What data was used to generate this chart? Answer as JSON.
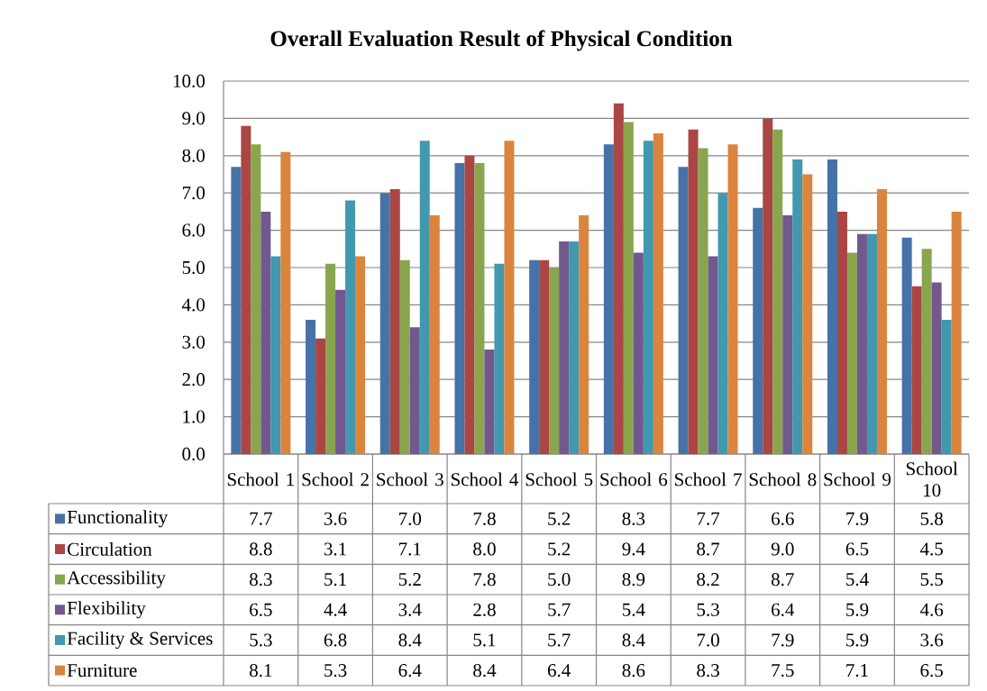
{
  "chart_data": {
    "type": "bar",
    "title": "Overall Evaluation Result of Physical Condition",
    "categories": [
      "School 1",
      "School 2",
      "School 3",
      "School 4",
      "School 5",
      "School 6",
      "School 7",
      "School 8",
      "School 9",
      "School 10"
    ],
    "series": [
      {
        "name": "Functionality",
        "color": "#4572A7",
        "values": [
          7.7,
          3.6,
          7.0,
          7.8,
          5.2,
          8.3,
          7.7,
          6.6,
          7.9,
          5.8
        ],
        "value_labels": [
          "7.7",
          "3.6",
          "7.0",
          "7.8",
          "5.2",
          "8.3",
          "7.7",
          "6.6",
          "7.9",
          "5.8"
        ]
      },
      {
        "name": "Circulation",
        "color": "#AA4643",
        "values": [
          8.8,
          3.1,
          7.1,
          8.0,
          5.2,
          9.4,
          8.7,
          9.0,
          6.5,
          4.5
        ],
        "value_labels": [
          "8.8",
          "3.1",
          "7.1",
          "8.0",
          "5.2",
          "9.4",
          "8.7",
          "9.0",
          "6.5",
          "4.5"
        ]
      },
      {
        "name": "Accessibility",
        "color": "#89A54E",
        "values": [
          8.3,
          5.1,
          5.2,
          7.8,
          5.0,
          8.9,
          8.2,
          8.7,
          5.4,
          5.5
        ],
        "value_labels": [
          "8.3",
          "5.1",
          "5.2",
          "7.8",
          "5.0",
          "8.9",
          "8.2",
          "8.7",
          "5.4",
          "5.5"
        ]
      },
      {
        "name": "Flexibility",
        "color": "#71588F",
        "values": [
          6.5,
          4.4,
          3.4,
          2.8,
          5.7,
          5.4,
          5.3,
          6.4,
          5.9,
          4.6
        ],
        "value_labels": [
          "6.5",
          "4.4",
          "3.4",
          "2.8",
          "5.7",
          "5.4",
          "5.3",
          "6.4",
          "5.9",
          "4.6"
        ]
      },
      {
        "name": "Facility & Services",
        "color": "#4198AF",
        "values": [
          5.3,
          6.8,
          8.4,
          5.1,
          5.7,
          8.4,
          7.0,
          7.9,
          5.9,
          3.6
        ],
        "value_labels": [
          "5.3",
          "6.8",
          "8.4",
          "5.1",
          "5.7",
          "8.4",
          "7.0",
          "7.9",
          "5.9",
          "3.6"
        ]
      },
      {
        "name": "Furniture",
        "color": "#DB843D",
        "values": [
          8.1,
          5.3,
          6.4,
          8.4,
          6.4,
          8.6,
          8.3,
          7.5,
          7.1,
          6.5
        ],
        "value_labels": [
          "8.1",
          "5.3",
          "6.4",
          "8.4",
          "6.4",
          "8.6",
          "8.3",
          "7.5",
          "7.1",
          "6.5"
        ]
      }
    ],
    "ylim": [
      0,
      10
    ],
    "yticks": [
      {
        "value": 0,
        "label": "0.0"
      },
      {
        "value": 1,
        "label": "1.0"
      },
      {
        "value": 2,
        "label": "2.0"
      },
      {
        "value": 3,
        "label": "3.0"
      },
      {
        "value": 4,
        "label": "4.0"
      },
      {
        "value": 5,
        "label": "5.0"
      },
      {
        "value": 6,
        "label": "6.0"
      },
      {
        "value": 7,
        "label": "7.0"
      },
      {
        "value": 8,
        "label": "8.0"
      },
      {
        "value": 9,
        "label": "9.0"
      },
      {
        "value": 10,
        "label": "10.0"
      }
    ],
    "grid": "y",
    "legend": "bottom left"
  }
}
